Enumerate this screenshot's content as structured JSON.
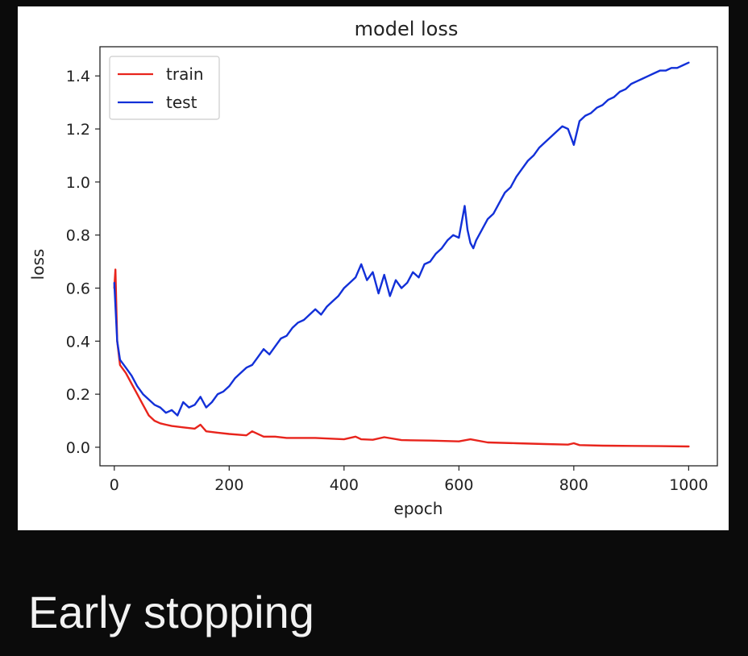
{
  "slide": {
    "caption": "Early stopping"
  },
  "chart_data": {
    "type": "line",
    "title": "model loss",
    "xlabel": "epoch",
    "ylabel": "loss",
    "xlim": [
      -25,
      1050
    ],
    "ylim": [
      -0.07,
      1.51
    ],
    "xticks": [
      0,
      200,
      400,
      600,
      800,
      1000
    ],
    "xtick_labels": [
      "0",
      "200",
      "400",
      "600",
      "800",
      "1000"
    ],
    "yticks": [
      0.0,
      0.2,
      0.4,
      0.6,
      0.8,
      1.0,
      1.2,
      1.4
    ],
    "ytick_labels": [
      "0.0",
      "0.2",
      "0.4",
      "0.6",
      "0.8",
      "1.0",
      "1.2",
      "1.4"
    ],
    "grid": false,
    "legend": "top-left",
    "series": [
      {
        "name": "train",
        "color": "#e8241c",
        "x": [
          0,
          2,
          5,
          10,
          20,
          30,
          40,
          50,
          60,
          70,
          80,
          90,
          100,
          120,
          140,
          150,
          160,
          180,
          200,
          230,
          240,
          260,
          280,
          300,
          350,
          400,
          420,
          430,
          450,
          470,
          500,
          550,
          600,
          620,
          650,
          700,
          750,
          790,
          800,
          810,
          850,
          900,
          950,
          1000
        ],
        "y": [
          0.6,
          0.67,
          0.4,
          0.31,
          0.28,
          0.24,
          0.2,
          0.16,
          0.12,
          0.1,
          0.09,
          0.085,
          0.08,
          0.075,
          0.07,
          0.085,
          0.06,
          0.055,
          0.05,
          0.045,
          0.06,
          0.04,
          0.04,
          0.035,
          0.035,
          0.03,
          0.04,
          0.03,
          0.028,
          0.038,
          0.027,
          0.025,
          0.022,
          0.03,
          0.018,
          0.015,
          0.012,
          0.01,
          0.015,
          0.008,
          0.006,
          0.005,
          0.004,
          0.003
        ]
      },
      {
        "name": "test",
        "color": "#1230d8",
        "x": [
          0,
          5,
          10,
          20,
          30,
          40,
          50,
          60,
          70,
          80,
          90,
          100,
          110,
          120,
          130,
          140,
          150,
          160,
          170,
          180,
          190,
          200,
          210,
          220,
          230,
          240,
          250,
          260,
          270,
          280,
          290,
          300,
          310,
          320,
          330,
          340,
          350,
          360,
          370,
          380,
          390,
          400,
          410,
          420,
          430,
          440,
          450,
          460,
          470,
          480,
          490,
          500,
          510,
          520,
          530,
          540,
          550,
          560,
          570,
          580,
          590,
          600,
          610,
          615,
          620,
          625,
          630,
          640,
          650,
          660,
          670,
          680,
          690,
          700,
          710,
          720,
          730,
          740,
          750,
          760,
          770,
          780,
          790,
          800,
          810,
          820,
          830,
          840,
          850,
          860,
          870,
          880,
          890,
          900,
          910,
          920,
          930,
          940,
          950,
          960,
          970,
          980,
          990,
          1000
        ],
        "y": [
          0.62,
          0.4,
          0.33,
          0.3,
          0.27,
          0.23,
          0.2,
          0.18,
          0.16,
          0.15,
          0.13,
          0.14,
          0.12,
          0.17,
          0.15,
          0.16,
          0.19,
          0.15,
          0.17,
          0.2,
          0.21,
          0.23,
          0.26,
          0.28,
          0.3,
          0.31,
          0.34,
          0.37,
          0.35,
          0.38,
          0.41,
          0.42,
          0.45,
          0.47,
          0.48,
          0.5,
          0.52,
          0.5,
          0.53,
          0.55,
          0.57,
          0.6,
          0.62,
          0.64,
          0.69,
          0.63,
          0.66,
          0.58,
          0.65,
          0.57,
          0.63,
          0.6,
          0.62,
          0.66,
          0.64,
          0.69,
          0.7,
          0.73,
          0.75,
          0.78,
          0.8,
          0.79,
          0.91,
          0.82,
          0.77,
          0.75,
          0.78,
          0.82,
          0.86,
          0.88,
          0.92,
          0.96,
          0.98,
          1.02,
          1.05,
          1.08,
          1.1,
          1.13,
          1.15,
          1.17,
          1.19,
          1.21,
          1.2,
          1.14,
          1.23,
          1.25,
          1.26,
          1.28,
          1.29,
          1.31,
          1.32,
          1.34,
          1.35,
          1.37,
          1.38,
          1.39,
          1.4,
          1.41,
          1.42,
          1.42,
          1.43,
          1.43,
          1.44,
          1.45
        ]
      }
    ]
  }
}
